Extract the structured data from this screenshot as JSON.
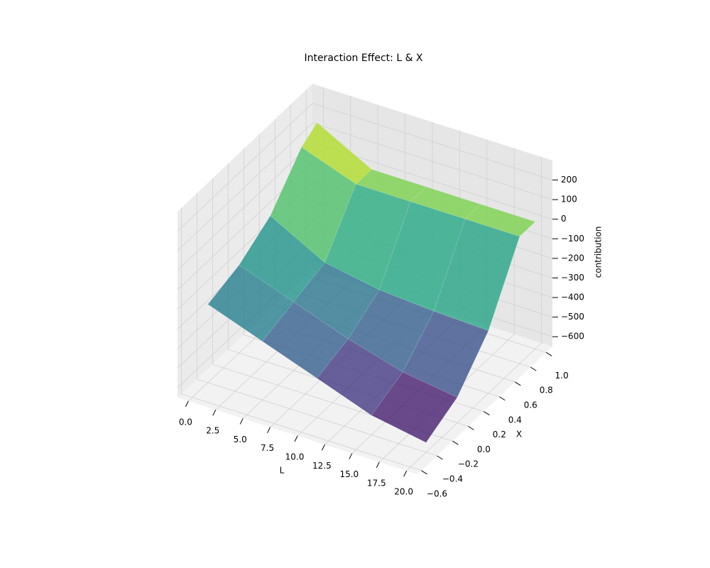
{
  "chart_data": {
    "type": "surface",
    "title": "Interaction Effect: L & X",
    "xlabel": "L",
    "ylabel": "X",
    "zlabel": "contribution",
    "colormap": "viridis",
    "alpha": 0.8,
    "grid": true,
    "x": [
      0,
      5,
      10,
      15,
      20
    ],
    "y": [
      -0.4,
      0,
      0.4,
      0.8,
      1.0
    ],
    "z": [
      [
        -250,
        -350,
        -450,
        -550,
        -600
      ],
      [
        -200,
        -300,
        -400,
        -480,
        -520
      ],
      [
        -100,
        -250,
        -300,
        -320,
        -330
      ],
      [
        100,
        0,
        0,
        0,
        0
      ],
      [
        150,
        0,
        0,
        0,
        0
      ]
    ],
    "xlim": [
      -1,
      21
    ],
    "ylim": [
      -0.65,
      1.08
    ],
    "zlim": [
      -650,
      300
    ],
    "xticks": [
      {
        "value": 0,
        "label": "0.0"
      },
      2.5,
      {
        "value": 5,
        "label": "5.0"
      },
      7.5,
      {
        "value": 10,
        "label": "10.0"
      },
      12.5,
      {
        "value": 15,
        "label": "15.0"
      },
      17.5,
      {
        "value": 20,
        "label": "20.0"
      }
    ],
    "yticks": [
      {
        "value": -0.6,
        "label": "−0.6"
      },
      {
        "value": -0.4,
        "label": "−0.4"
      },
      {
        "value": -0.2,
        "label": "−0.2"
      },
      {
        "value": 0,
        "label": "0.0"
      },
      0.2,
      0.4,
      0.6,
      0.8,
      {
        "value": 1.0,
        "label": "1.0"
      }
    ],
    "zticks": [
      {
        "value": -600,
        "label": "−600"
      },
      {
        "value": -500,
        "label": "−500"
      },
      {
        "value": -400,
        "label": "−400"
      },
      {
        "value": -300,
        "label": "−300"
      },
      {
        "value": -200,
        "label": "−200"
      },
      {
        "value": -100,
        "label": "−100"
      },
      0,
      100,
      200
    ]
  }
}
